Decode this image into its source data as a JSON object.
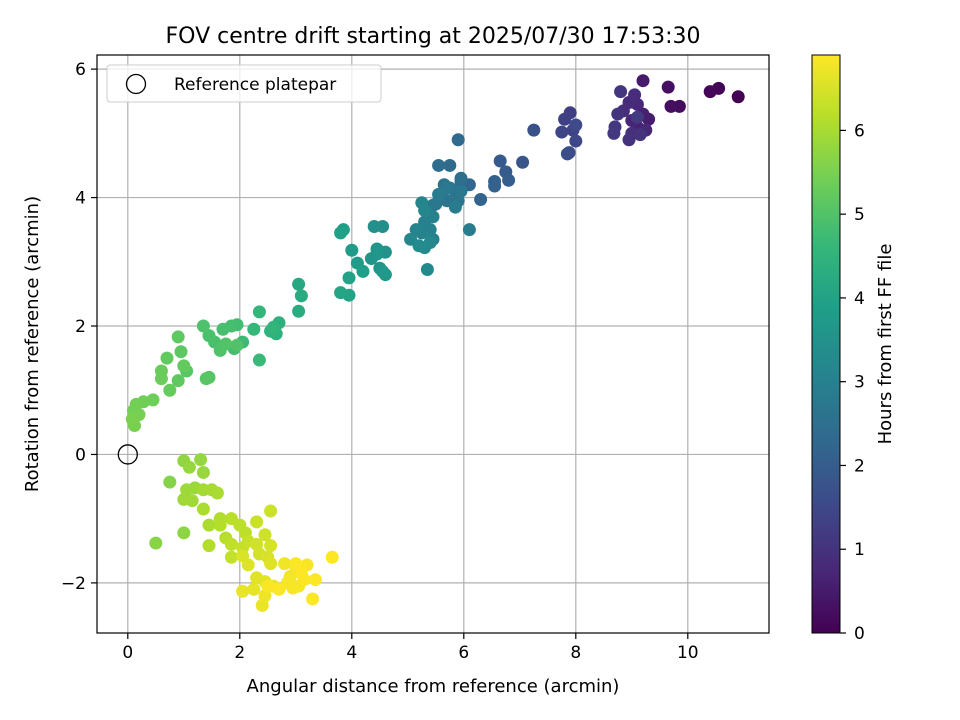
{
  "chart_data": {
    "type": "scatter",
    "title": "FOV centre drift starting at 2025/07/30 17:53:30",
    "xlabel": "Angular distance from reference (arcmin)",
    "ylabel": "Rotation from reference (arcmin)",
    "xlim": [
      -0.55,
      11.45
    ],
    "ylim": [
      -2.78,
      6.22
    ],
    "xticks": [
      0,
      2,
      4,
      6,
      8,
      10
    ],
    "xtick_labels": [
      "0",
      "2",
      "4",
      "6",
      "8",
      "10"
    ],
    "yticks": [
      -2,
      0,
      2,
      4,
      6
    ],
    "ytick_labels": [
      "−2",
      "0",
      "2",
      "4",
      "6"
    ],
    "grid": true,
    "legend": {
      "placement": "top-left",
      "entries": [
        "Reference platepar"
      ]
    },
    "reference_point": {
      "x": 0,
      "y": 0
    },
    "colorbar": {
      "label": "Hours from first FF file",
      "colormap": "viridis",
      "range": [
        0,
        6.9
      ],
      "ticks": [
        0,
        1,
        2,
        3,
        4,
        5,
        6
      ],
      "tick_labels": [
        "0",
        "1",
        "2",
        "3",
        "4",
        "5",
        "6"
      ]
    },
    "points": [
      [
        10.9,
        5.57,
        0.0
      ],
      [
        10.55,
        5.7,
        0.05
      ],
      [
        10.4,
        5.65,
        0.1
      ],
      [
        9.85,
        5.42,
        0.2
      ],
      [
        9.7,
        5.42,
        0.25
      ],
      [
        9.65,
        5.72,
        0.3
      ],
      [
        9.2,
        5.82,
        0.5
      ],
      [
        9.3,
        5.22,
        0.55
      ],
      [
        9.2,
        5.3,
        0.6
      ],
      [
        9.1,
        5.1,
        0.65
      ],
      [
        9.0,
        5.2,
        0.7
      ],
      [
        9.25,
        5.05,
        0.75
      ],
      [
        9.1,
        5.45,
        0.8
      ],
      [
        8.95,
        5.48,
        0.85
      ],
      [
        9.05,
        5.6,
        0.88
      ],
      [
        8.85,
        5.35,
        0.9
      ],
      [
        9.0,
        5.0,
        0.95
      ],
      [
        8.95,
        4.9,
        1.0
      ],
      [
        9.15,
        4.98,
        1.02
      ],
      [
        8.75,
        5.3,
        1.05
      ],
      [
        8.8,
        5.65,
        1.1
      ],
      [
        8.7,
        5.1,
        1.12
      ],
      [
        8.68,
        5.0,
        1.15
      ],
      [
        9.1,
        5.25,
        1.18
      ],
      [
        7.9,
        5.32,
        1.3
      ],
      [
        7.8,
        5.22,
        1.35
      ],
      [
        7.95,
        5.05,
        1.4
      ],
      [
        7.75,
        5.02,
        1.45
      ],
      [
        8.0,
        4.88,
        1.5
      ],
      [
        8.0,
        5.13,
        1.55
      ],
      [
        7.88,
        4.7,
        1.6
      ],
      [
        7.85,
        4.68,
        1.65
      ],
      [
        7.25,
        5.05,
        1.75
      ],
      [
        7.05,
        4.55,
        1.85
      ],
      [
        6.65,
        4.57,
        1.95
      ],
      [
        6.75,
        4.4,
        2.0
      ],
      [
        6.8,
        4.27,
        2.05
      ],
      [
        6.55,
        4.25,
        2.1
      ],
      [
        6.55,
        4.18,
        2.15
      ],
      [
        6.3,
        3.97,
        2.2
      ],
      [
        6.1,
        4.2,
        2.25
      ],
      [
        5.95,
        4.25,
        2.3
      ],
      [
        5.9,
        4.9,
        2.35
      ],
      [
        5.75,
        4.5,
        2.4
      ],
      [
        5.55,
        4.5,
        2.45
      ],
      [
        5.95,
        4.3,
        2.5
      ],
      [
        5.85,
        4.1,
        2.55
      ],
      [
        5.75,
        4.15,
        2.6
      ],
      [
        5.65,
        4.2,
        2.62
      ],
      [
        5.7,
        3.95,
        2.65
      ],
      [
        5.6,
        4.0,
        2.68
      ],
      [
        5.9,
        3.95,
        2.7
      ],
      [
        5.5,
        3.9,
        2.72
      ],
      [
        5.45,
        3.88,
        2.75
      ],
      [
        5.95,
        4.1,
        2.78
      ],
      [
        5.7,
        4.15,
        2.8
      ],
      [
        6.1,
        3.5,
        2.85
      ],
      [
        5.85,
        3.85,
        2.88
      ],
      [
        5.55,
        4.05,
        2.9
      ],
      [
        5.35,
        3.75,
        2.95
      ],
      [
        5.3,
        3.62,
        3.0
      ],
      [
        5.45,
        3.7,
        3.02
      ],
      [
        5.4,
        3.5,
        3.05
      ],
      [
        5.45,
        3.35,
        3.08
      ],
      [
        5.25,
        3.45,
        3.1
      ],
      [
        5.15,
        3.5,
        3.12
      ],
      [
        5.25,
        3.92,
        3.15
      ],
      [
        5.3,
        3.8,
        3.18
      ],
      [
        5.05,
        3.35,
        3.2
      ],
      [
        5.4,
        3.3,
        3.22
      ],
      [
        5.35,
        2.88,
        3.25
      ],
      [
        5.3,
        3.22,
        3.28
      ],
      [
        5.2,
        3.25,
        3.3
      ],
      [
        4.55,
        3.55,
        3.4
      ],
      [
        4.4,
        3.55,
        3.45
      ],
      [
        4.6,
        3.15,
        3.5
      ],
      [
        4.45,
        3.2,
        3.55
      ],
      [
        4.35,
        3.05,
        3.58
      ],
      [
        4.5,
        2.9,
        3.6
      ],
      [
        4.45,
        3.12,
        3.62
      ],
      [
        4.55,
        2.85,
        3.65
      ],
      [
        4.6,
        2.8,
        3.68
      ],
      [
        4.0,
        3.18,
        3.75
      ],
      [
        4.1,
        2.98,
        3.8
      ],
      [
        4.2,
        2.85,
        3.82
      ],
      [
        3.85,
        3.5,
        3.85
      ],
      [
        3.8,
        3.45,
        3.9
      ],
      [
        3.95,
        2.75,
        3.95
      ],
      [
        3.95,
        2.48,
        4.0
      ],
      [
        3.8,
        2.52,
        4.05
      ],
      [
        3.05,
        2.65,
        4.15
      ],
      [
        3.1,
        2.47,
        4.2
      ],
      [
        3.05,
        2.23,
        4.25
      ],
      [
        2.7,
        2.05,
        4.35
      ],
      [
        2.65,
        1.88,
        4.4
      ],
      [
        2.55,
        1.92,
        4.45
      ],
      [
        2.6,
        1.98,
        4.5
      ],
      [
        2.35,
        2.22,
        4.55
      ],
      [
        2.25,
        1.95,
        4.6
      ],
      [
        2.35,
        1.47,
        4.65
      ],
      [
        2.05,
        1.75,
        4.7
      ],
      [
        1.95,
        2.02,
        4.75
      ],
      [
        1.9,
        1.65,
        4.8
      ],
      [
        1.85,
        2.0,
        4.82
      ],
      [
        1.7,
        1.95,
        4.85
      ],
      [
        1.55,
        1.75,
        4.88
      ],
      [
        1.45,
        1.85,
        4.9
      ],
      [
        1.35,
        2.0,
        4.92
      ],
      [
        1.65,
        1.62,
        4.95
      ],
      [
        1.95,
        1.7,
        4.98
      ],
      [
        1.75,
        1.72,
        5.0
      ],
      [
        1.45,
        1.2,
        5.05
      ],
      [
        1.4,
        1.18,
        5.08
      ],
      [
        1.05,
        1.3,
        5.1
      ],
      [
        0.95,
        1.6,
        5.12
      ],
      [
        0.9,
        1.83,
        5.15
      ],
      [
        0.9,
        1.15,
        5.18
      ],
      [
        0.7,
        1.5,
        5.2
      ],
      [
        1.0,
        1.38,
        5.22
      ],
      [
        0.75,
        1.0,
        5.25
      ],
      [
        0.6,
        1.3,
        5.28
      ],
      [
        0.6,
        1.18,
        5.3
      ],
      [
        0.45,
        0.85,
        5.35
      ],
      [
        0.28,
        0.82,
        5.38
      ],
      [
        0.15,
        0.78,
        5.4
      ],
      [
        0.1,
        0.68,
        5.42
      ],
      [
        0.2,
        0.62,
        5.45
      ],
      [
        0.12,
        0.45,
        5.48
      ],
      [
        0.08,
        0.55,
        5.5
      ],
      [
        0.75,
        -0.43,
        5.6
      ],
      [
        0.5,
        -1.38,
        5.65
      ],
      [
        1.0,
        -1.22,
        5.7
      ],
      [
        1.0,
        -0.1,
        5.75
      ],
      [
        1.3,
        -0.08,
        5.78
      ],
      [
        1.1,
        -0.2,
        5.8
      ],
      [
        1.35,
        -0.28,
        5.82
      ],
      [
        1.2,
        -0.52,
        5.85
      ],
      [
        1.05,
        -0.55,
        5.88
      ],
      [
        1.0,
        -0.7,
        5.9
      ],
      [
        1.15,
        -0.72,
        5.92
      ],
      [
        1.35,
        -0.55,
        5.95
      ],
      [
        1.5,
        -0.55,
        5.98
      ],
      [
        1.6,
        -0.6,
        6.0
      ],
      [
        1.35,
        -0.85,
        6.02
      ],
      [
        1.45,
        -1.1,
        6.05
      ],
      [
        1.65,
        -1.0,
        6.08
      ],
      [
        1.45,
        -1.42,
        6.1
      ],
      [
        1.65,
        -1.1,
        6.12
      ],
      [
        1.75,
        -1.3,
        6.15
      ],
      [
        1.85,
        -1.0,
        6.18
      ],
      [
        2.0,
        -1.1,
        6.2
      ],
      [
        2.1,
        -1.22,
        6.22
      ],
      [
        1.85,
        -1.4,
        6.25
      ],
      [
        1.85,
        -1.6,
        6.28
      ],
      [
        2.05,
        -1.45,
        6.3
      ],
      [
        2.15,
        -1.35,
        6.32
      ],
      [
        2.3,
        -1.05,
        6.35
      ],
      [
        2.55,
        -0.88,
        6.38
      ],
      [
        2.45,
        -1.25,
        6.4
      ],
      [
        2.3,
        -1.4,
        6.42
      ],
      [
        2.35,
        -1.55,
        6.45
      ],
      [
        2.55,
        -1.42,
        6.48
      ],
      [
        2.5,
        -1.6,
        6.5
      ],
      [
        2.05,
        -1.58,
        6.52
      ],
      [
        2.15,
        -1.72,
        6.55
      ],
      [
        2.55,
        -1.7,
        6.58
      ],
      [
        2.3,
        -1.92,
        6.6
      ],
      [
        2.45,
        -1.98,
        6.62
      ],
      [
        2.25,
        -2.1,
        6.65
      ],
      [
        2.05,
        -2.13,
        6.68
      ],
      [
        2.4,
        -2.35,
        6.7
      ],
      [
        2.6,
        -2.05,
        6.72
      ],
      [
        2.45,
        -2.2,
        6.74
      ],
      [
        2.8,
        -1.7,
        6.76
      ],
      [
        2.9,
        -1.9,
        6.78
      ],
      [
        3.0,
        -1.75,
        6.8
      ],
      [
        2.85,
        -2.0,
        6.82
      ],
      [
        3.05,
        -2.05,
        6.84
      ],
      [
        3.2,
        -1.72,
        6.85
      ],
      [
        3.15,
        -1.95,
        6.86
      ],
      [
        3.3,
        -2.25,
        6.87
      ],
      [
        3.35,
        -1.95,
        6.88
      ],
      [
        3.0,
        -1.7,
        6.89
      ],
      [
        3.1,
        -1.85,
        6.9
      ],
      [
        3.65,
        -1.6,
        6.9
      ],
      [
        2.7,
        -2.1,
        6.88
      ],
      [
        2.5,
        -2.05,
        6.86
      ],
      [
        2.95,
        -2.08,
        6.84
      ]
    ]
  }
}
